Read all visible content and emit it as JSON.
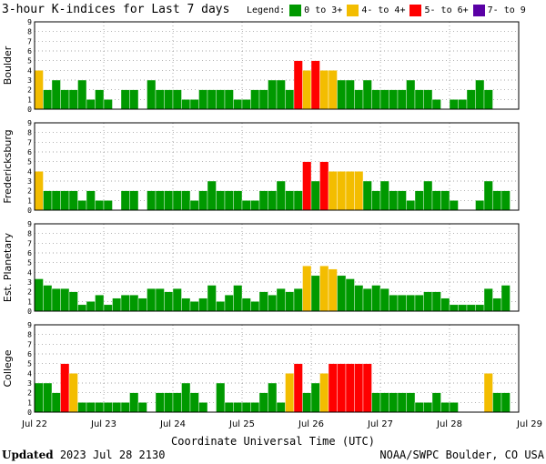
{
  "header": {
    "title": "3-hour K-indices for Last 7 days",
    "legend_label": "Legend:"
  },
  "legend": [
    {
      "label": "0 to 3+",
      "color": "#009900"
    },
    {
      "label": "4- to 4+",
      "color": "#f3bd00"
    },
    {
      "label": "5- to 6+",
      "color": "#ff0000"
    },
    {
      "label": "7- to 9",
      "color": "#5a00a5"
    }
  ],
  "footer": {
    "updated_label": "Updated",
    "updated_value": "2023 Jul 28 2130",
    "source": "NOAA/SWPC Boulder, CO USA"
  },
  "chart_data": {
    "type": "bar",
    "xlabel": "Coordinate Universal Time (UTC)",
    "x_tick_labels": [
      "Jul 22",
      "Jul 23",
      "Jul 24",
      "Jul 25",
      "Jul 26",
      "Jul 27",
      "Jul 28",
      "Jul 29"
    ],
    "ylim": [
      0,
      9
    ],
    "y_ticks": [
      0,
      1,
      2,
      3,
      4,
      5,
      6,
      7,
      8,
      9
    ],
    "intervals_per_day": 8,
    "grid": "dotted",
    "color_thresholds": {
      "green_max": 3.67,
      "yellow_max": 4.67,
      "red_max": 6.67
    },
    "panels": [
      {
        "name": "Boulder",
        "values": [
          4,
          2,
          3,
          2,
          2,
          3,
          1,
          2,
          1,
          0,
          2,
          2,
          0,
          3,
          2,
          2,
          2,
          1,
          1,
          2,
          2,
          2,
          2,
          1,
          1,
          2,
          2,
          3,
          3,
          2,
          5,
          4,
          5,
          4,
          4,
          3,
          3,
          2,
          3,
          2,
          2,
          2,
          2,
          3,
          2,
          2,
          1,
          0,
          1,
          1,
          2,
          3,
          2,
          0
        ]
      },
      {
        "name": "Fredericksburg",
        "values": [
          4,
          2,
          2,
          2,
          2,
          1,
          2,
          1,
          1,
          0,
          2,
          2,
          0,
          2,
          2,
          2,
          2,
          2,
          1,
          2,
          3,
          2,
          2,
          2,
          1,
          1,
          2,
          2,
          3,
          2,
          2,
          5,
          3,
          5,
          4,
          4,
          4,
          4,
          3,
          2,
          3,
          2,
          2,
          1,
          2,
          3,
          2,
          2,
          1,
          0,
          0,
          1,
          3,
          2,
          2,
          0
        ]
      },
      {
        "name": "Est. Planetary",
        "values": [
          3.33,
          2.67,
          2.33,
          2.33,
          2,
          0.67,
          1,
          1.67,
          0.67,
          1.33,
          1.67,
          1.67,
          1.33,
          2.33,
          2.33,
          2,
          2.33,
          1.33,
          1,
          1.33,
          2.67,
          1,
          1.67,
          2.67,
          1.33,
          1,
          2,
          1.67,
          2.33,
          2,
          2.33,
          4.67,
          3.67,
          4.67,
          4.33,
          3.67,
          3.33,
          2.67,
          2.33,
          2.67,
          2.33,
          1.67,
          1.67,
          1.67,
          1.67,
          2,
          2,
          1.33,
          0.67,
          0.67,
          0.67,
          0.67,
          2.33,
          1.33,
          2.67
        ]
      },
      {
        "name": "College",
        "values": [
          3,
          3,
          2,
          5,
          4,
          1,
          1,
          1,
          1,
          1,
          1,
          2,
          1,
          0,
          2,
          2,
          2,
          3,
          2,
          1,
          0,
          3,
          1,
          1,
          1,
          1,
          2,
          3,
          1,
          4,
          5,
          2,
          3,
          4,
          5,
          5,
          5,
          5,
          5,
          2,
          2,
          2,
          2,
          2,
          1,
          1,
          2,
          1,
          1,
          0,
          0,
          0,
          4,
          2,
          2
        ]
      }
    ]
  }
}
